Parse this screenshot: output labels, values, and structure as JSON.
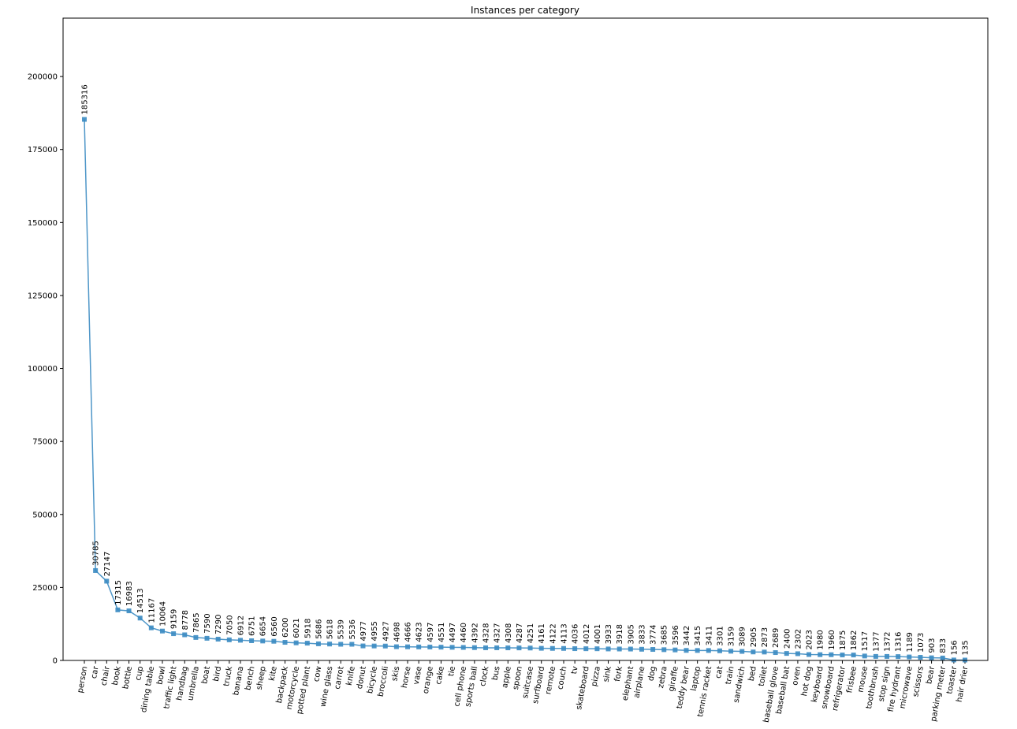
{
  "chart_data": {
    "type": "line",
    "title": "Instances per category",
    "xlabel": "",
    "ylabel": "",
    "ylim": [
      0,
      220000
    ],
    "yticks": [
      0,
      25000,
      50000,
      75000,
      100000,
      125000,
      150000,
      175000,
      200000
    ],
    "grid": false,
    "legend": "none",
    "marker": "square",
    "color": "#3b8bc2",
    "categories": [
      "person",
      "car",
      "chair",
      "book",
      "bottle",
      "cup",
      "dining table",
      "bowl",
      "traffic light",
      "handbag",
      "umbrella",
      "boat",
      "bird",
      "truck",
      "banana",
      "bench",
      "sheep",
      "kite",
      "backpack",
      "motorcycle",
      "potted plant",
      "cow",
      "wine glass",
      "carrot",
      "knife",
      "donut",
      "bicycle",
      "broccoli",
      "skis",
      "horse",
      "vase",
      "orange",
      "cake",
      "tie",
      "cell phone",
      "sports ball",
      "clock",
      "bus",
      "apple",
      "spoon",
      "suitcase",
      "surfboard",
      "remote",
      "couch",
      "tv",
      "skateboard",
      "pizza",
      "sink",
      "fork",
      "elephant",
      "airplane",
      "dog",
      "zebra",
      "giraffe",
      "teddy bear",
      "laptop",
      "tennis racket",
      "cat",
      "train",
      "sandwich",
      "bed",
      "toilet",
      "baseball glove",
      "baseball bat",
      "oven",
      "hot dog",
      "keyboard",
      "snowboard",
      "refrigerator",
      "frisbee",
      "mouse",
      "toothbrush",
      "stop sign",
      "fire hydrant",
      "microwave",
      "scissors",
      "bear",
      "parking meter",
      "toaster",
      "hair drier"
    ],
    "values": [
      185316,
      30785,
      27147,
      17315,
      16983,
      14513,
      11167,
      10064,
      9159,
      8778,
      7865,
      7590,
      7290,
      7050,
      6912,
      6751,
      6654,
      6560,
      6200,
      6021,
      5918,
      5686,
      5618,
      5539,
      5536,
      4977,
      4955,
      4927,
      4698,
      4666,
      4623,
      4597,
      4551,
      4497,
      4460,
      4392,
      4328,
      4327,
      4308,
      4287,
      4251,
      4161,
      4122,
      4113,
      4036,
      4012,
      4001,
      3933,
      3918,
      3905,
      3833,
      3774,
      3685,
      3596,
      3442,
      3415,
      3411,
      3301,
      3159,
      3089,
      2905,
      2873,
      2689,
      2400,
      2302,
      2023,
      1980,
      1960,
      1875,
      1862,
      1517,
      1377,
      1372,
      1316,
      1189,
      1073,
      903,
      833,
      156,
      135
    ],
    "data_labels": [
      "185316",
      "30785",
      "27147",
      "17315",
      "16983",
      "14513",
      "11167",
      "10064",
      "9159",
      "8778",
      "7865",
      "7590",
      "7290",
      "7050",
      "6912",
      "6751",
      "6654",
      "6560",
      "6200",
      "6021",
      "5918",
      "5686",
      "5618",
      "5539",
      "5536",
      "4977",
      "4955",
      "4927",
      "4698",
      "4666",
      "4623",
      "4597",
      "4551",
      "4497",
      "4460",
      "4392",
      "4328",
      "4327",
      "4308",
      "4287",
      "4251",
      "4161",
      "4122",
      "4113",
      "4036",
      "4012",
      "4001",
      "3933",
      "3918",
      "3905",
      "3833",
      "3774",
      "3685",
      "3596",
      "3442",
      "3415",
      "3411",
      "3301",
      "3159",
      "3089",
      "2905",
      "2873",
      "2689",
      "2400",
      "2302",
      "2023",
      "1980",
      "1960",
      "1875",
      "1862",
      "1517",
      "1377",
      "1372",
      "1316",
      "1189",
      "1073",
      "903",
      "833",
      "156",
      "135"
    ]
  }
}
